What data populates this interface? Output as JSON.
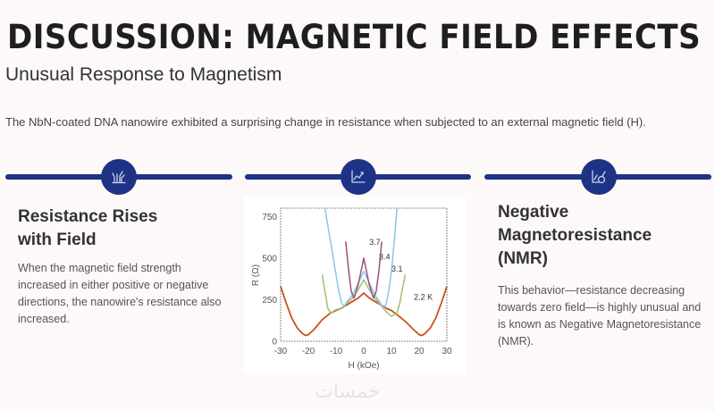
{
  "header": {
    "title": "DISCUSSION: MAGNETIC FIELD EFFECTS",
    "subtitle": "Unusual Response to Magnetism"
  },
  "intro": "The NbN-coated DNA nanowire exhibited a surprising change in resistance when subjected to an external magnetic field (H).",
  "theme": {
    "accent": "#1e3386",
    "background": "#fcf9f8"
  },
  "sections": [
    {
      "icon": "plant-sprout-icon"
    },
    {
      "icon": "line-chart-icon"
    },
    {
      "icon": "chart-magnet-icon"
    }
  ],
  "left": {
    "heading_line1": "Resistance Rises",
    "heading_line2": "with Field",
    "body": "When the magnetic field strength increased in either positive or negative directions, the nanowire's resistance also increased."
  },
  "right": {
    "heading_line1": "Negative",
    "heading_line2": "Magnetoresistance",
    "heading_line3": "(NMR)",
    "body": "This behavior—resistance decreasing towards zero field—is highly unusual and is known as Negative Magnetoresistance (NMR)."
  },
  "watermark": "خمسات",
  "chart_data": {
    "type": "line",
    "title": "",
    "xlabel": "H (kOe)",
    "ylabel": "R (Ω)",
    "xlim": [
      -30,
      30
    ],
    "ylim": [
      0,
      800
    ],
    "xticks": [
      "-30",
      "-20",
      "-10",
      "0",
      "10",
      "20",
      "30"
    ],
    "yticks": [
      "0",
      "250",
      "500",
      "750"
    ],
    "grid": false,
    "series": [
      {
        "name": "2.2 K",
        "label": "2.2 K",
        "color": "#c8521e",
        "x": [
          -30,
          -28,
          -26,
          -24,
          -22,
          -21,
          -20,
          -18,
          -15,
          -12,
          -10,
          -8,
          -6,
          -4,
          -2,
          0,
          2,
          4,
          6,
          8,
          10,
          12,
          15,
          18,
          20,
          21,
          22,
          24,
          26,
          28,
          30
        ],
        "y": [
          330,
          230,
          140,
          80,
          45,
          35,
          40,
          70,
          130,
          170,
          185,
          200,
          220,
          240,
          260,
          290,
          260,
          240,
          220,
          200,
          185,
          160,
          120,
          70,
          40,
          35,
          45,
          80,
          140,
          230,
          330
        ]
      },
      {
        "name": "3.1 K",
        "label": "3.1",
        "color": "#9dc26a",
        "x": [
          -15,
          -14,
          -13,
          -12,
          -10,
          -8,
          -6,
          -4,
          -2,
          0,
          2,
          4,
          6,
          8,
          10,
          12,
          13,
          14,
          15
        ],
        "y": [
          400,
          300,
          200,
          170,
          190,
          200,
          230,
          260,
          310,
          370,
          310,
          260,
          220,
          180,
          150,
          170,
          230,
          320,
          400
        ]
      },
      {
        "name": "3.4 K",
        "label": "3.4",
        "color": "#8ac6e8",
        "x": [
          -14,
          -12,
          -10,
          -9,
          -8,
          -7,
          -6,
          -4,
          -2,
          0,
          2,
          4,
          6,
          7,
          8,
          9,
          10,
          11,
          12
        ],
        "y": [
          800,
          600,
          400,
          300,
          230,
          210,
          240,
          280,
          350,
          420,
          350,
          280,
          230,
          200,
          220,
          300,
          420,
          600,
          800
        ]
      },
      {
        "name": "3.7 K",
        "label": "3.7",
        "color": "#a0507a",
        "x": [
          -6.5,
          -5.5,
          -4.5,
          -3.5,
          -2,
          0,
          2,
          3.5,
          4.5,
          5.5,
          6.5
        ],
        "y": [
          600,
          430,
          300,
          260,
          340,
          500,
          340,
          260,
          300,
          430,
          600
        ]
      }
    ],
    "annotations": [
      {
        "text": "3.7",
        "x": 4,
        "y": 580
      },
      {
        "text": "3.4",
        "x": 7.5,
        "y": 490
      },
      {
        "text": "3.1",
        "x": 12,
        "y": 420
      },
      {
        "text": "2.2 K",
        "x": 21.5,
        "y": 250
      }
    ]
  }
}
